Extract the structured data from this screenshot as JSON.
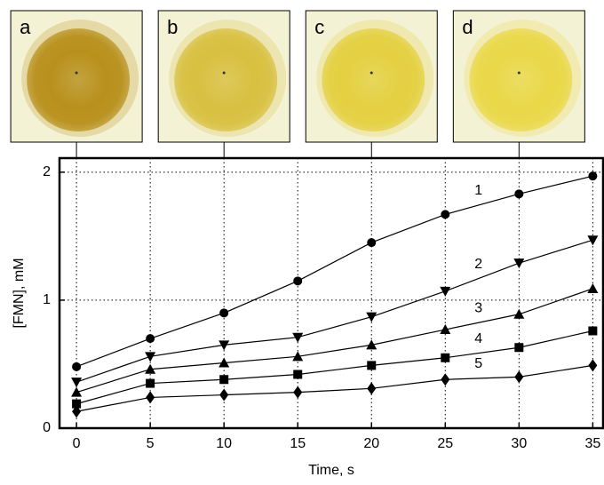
{
  "chart_data": {
    "type": "line",
    "x_label": "Time, s",
    "y_label": "[FMN], mM",
    "x": [
      0,
      5,
      10,
      15,
      20,
      25,
      30,
      35
    ],
    "series": [
      {
        "name": "1",
        "marker": "circle",
        "color": "#000000",
        "values": [
          0.48,
          0.7,
          0.9,
          1.15,
          1.45,
          1.67,
          1.83,
          1.97
        ]
      },
      {
        "name": "2",
        "marker": "triangle-down",
        "color": "#000000",
        "values": [
          0.36,
          0.56,
          0.65,
          0.71,
          0.87,
          1.07,
          1.29,
          1.47
        ]
      },
      {
        "name": "3",
        "marker": "triangle-up",
        "color": "#000000",
        "values": [
          0.28,
          0.46,
          0.51,
          0.56,
          0.65,
          0.77,
          0.89,
          1.09
        ]
      },
      {
        "name": "4",
        "marker": "square",
        "color": "#000000",
        "values": [
          0.19,
          0.35,
          0.38,
          0.42,
          0.49,
          0.55,
          0.63,
          0.76
        ]
      },
      {
        "name": "5",
        "marker": "diamond",
        "color": "#000000",
        "values": [
          0.13,
          0.24,
          0.26,
          0.28,
          0.31,
          0.38,
          0.4,
          0.49
        ]
      }
    ],
    "xlim": [
      -1.15,
      35.7
    ],
    "ylim": [
      0,
      2.11
    ],
    "xticks": [
      0,
      5,
      10,
      15,
      20,
      25,
      30,
      35
    ],
    "yticks": [
      0,
      1,
      2
    ],
    "grid": true,
    "insets": [
      {
        "label": "a",
        "x": 0,
        "color": "#b8901c"
      },
      {
        "label": "b",
        "x": 10,
        "color": "#d8c040"
      },
      {
        "label": "c",
        "x": 20,
        "color": "#e4d040"
      },
      {
        "label": "d",
        "x": 30,
        "color": "#ead848"
      }
    ]
  }
}
